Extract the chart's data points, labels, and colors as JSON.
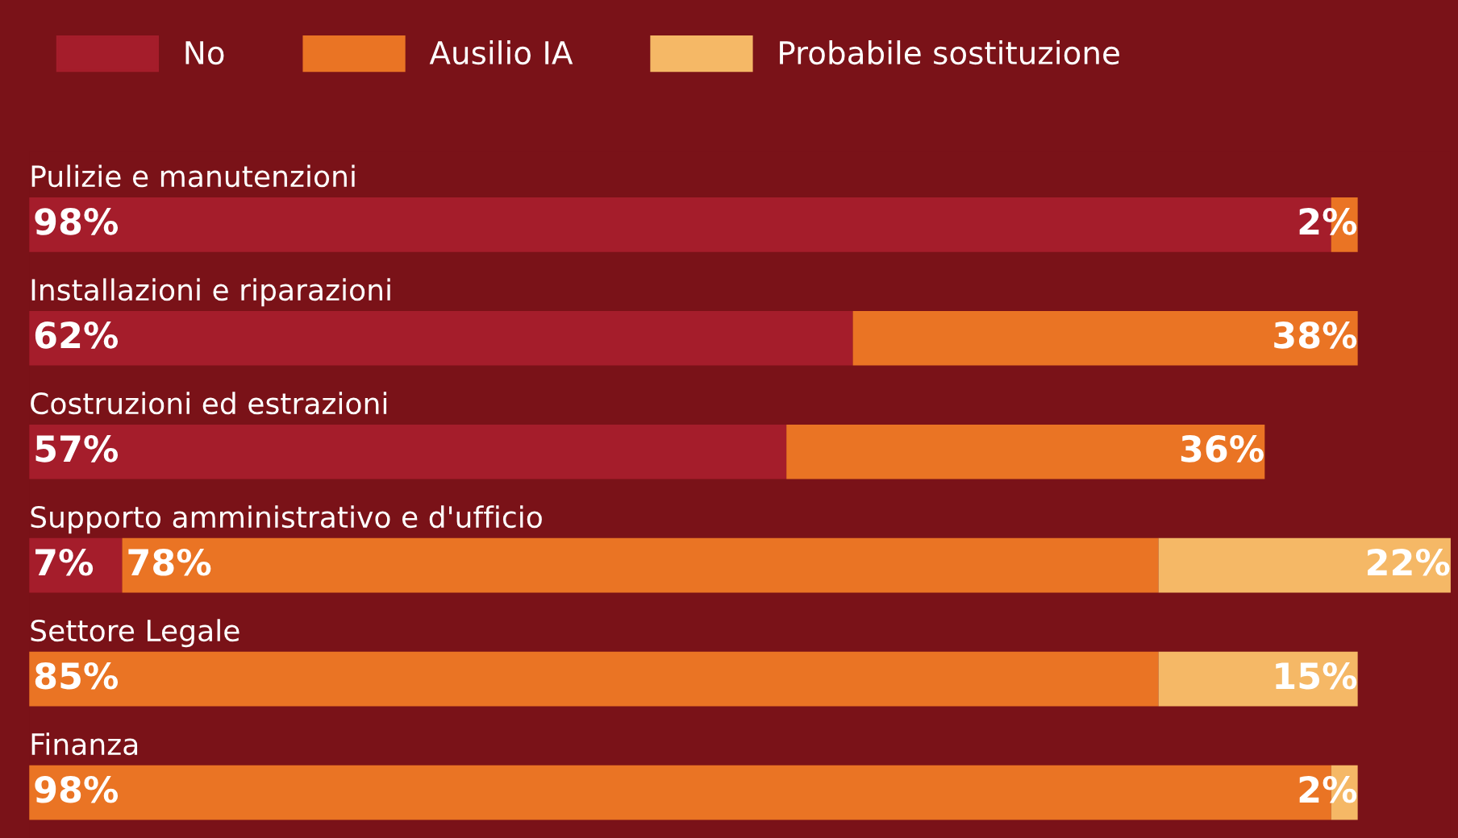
{
  "chart_data": {
    "type": "bar",
    "orientation": "horizontal",
    "stacked": true,
    "legend": "top left",
    "categories": [
      "Pulizie e manutenzioni",
      "Installazioni e riparazioni",
      "Costruzioni ed estrazioni",
      "Supporto amministrativo e d'ufficio",
      "Settore Legale",
      "Finanza"
    ],
    "series": [
      {
        "name": "No",
        "color": "#a51d2b",
        "values": [
          98,
          62,
          57,
          7,
          null,
          null
        ],
        "value_labels": [
          "98%",
          "62%",
          "57%",
          "7%",
          null,
          null
        ]
      },
      {
        "name": "Ausilio IA",
        "color": "#ea7424",
        "values": [
          2,
          38,
          36,
          78,
          85,
          98
        ],
        "value_labels": [
          "2%",
          "38%",
          "36%",
          "78%",
          "85%",
          "98%"
        ]
      },
      {
        "name": "Probabile sostituzione",
        "color": "#f5b866",
        "values": [
          null,
          null,
          null,
          22,
          15,
          2
        ],
        "value_labels": [
          null,
          null,
          null,
          "22%",
          "15%",
          "2%"
        ]
      }
    ]
  }
}
